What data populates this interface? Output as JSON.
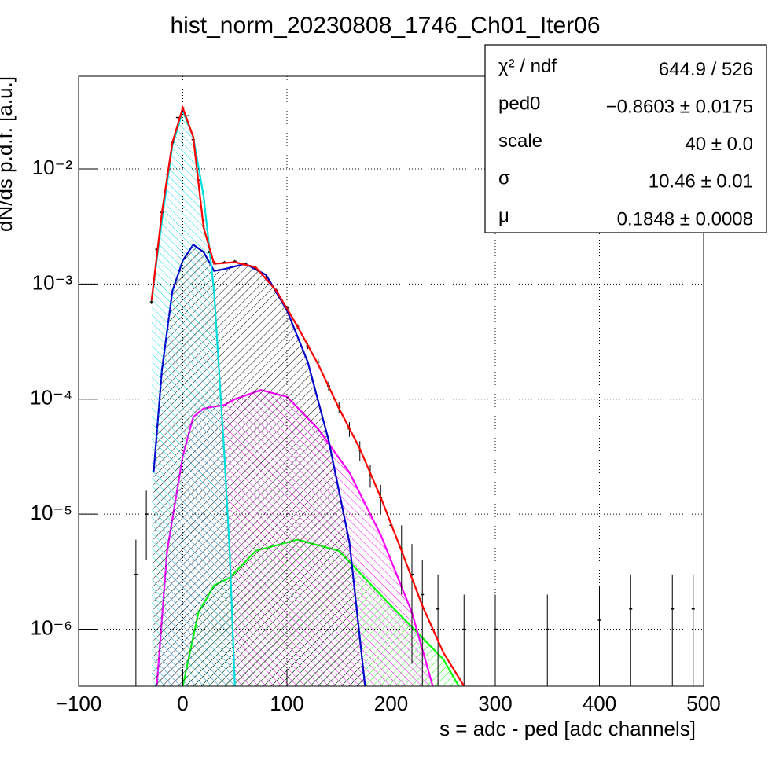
{
  "chart_data": {
    "type": "line",
    "title": "hist_norm_20230808_1746_Ch01_Iter06",
    "x_label": "s = adc - ped [adc channels]",
    "y_label": "dN/ds p.d.f. [a.u.]",
    "xlim": [
      -100,
      500
    ],
    "xticks": [
      {
        "value": -100,
        "label": "−100"
      },
      0,
      100,
      200,
      300,
      400,
      500
    ],
    "ylim": [
      3.2e-07,
      0.064
    ],
    "log_y": true,
    "yticks": [
      {
        "value": 1e-06,
        "label": "10⁻⁶"
      },
      {
        "value": 1e-05,
        "label": "10⁻⁵"
      },
      {
        "value": 0.0001,
        "label": "10⁻⁴"
      },
      {
        "value": 0.001,
        "label": "10⁻³"
      },
      {
        "value": 0.01,
        "label": "10⁻²"
      }
    ],
    "grid": true,
    "stats": [
      {
        "label": "χ² / ndf",
        "value": "644.9 / 526"
      },
      {
        "label": "ped0",
        "value": "−0.8603 ± 0.0175"
      },
      {
        "label": "scale",
        "value": "40 ± 0.0"
      },
      {
        "label": "σ",
        "value": "10.46 ± 0.01"
      },
      {
        "label": "μ",
        "value": "0.1848 ± 0.0008"
      }
    ],
    "series": [
      {
        "type": "curve",
        "color": "#00ff00",
        "hatch": "#00ff00",
        "x": [
          0,
          15,
          30,
          45,
          70,
          110,
          150,
          200,
          250,
          265
        ],
        "values": [
          3.2e-07,
          1.4e-06,
          2.4e-06,
          2.8e-06,
          4.8e-06,
          6e-06,
          4.8e-06,
          1.6e-06,
          5.5e-07,
          3.2e-07
        ]
      },
      {
        "type": "curve",
        "color": "#ff00ff",
        "hatch": "#ff00ff",
        "x": [
          -25,
          -15,
          0,
          10,
          20,
          40,
          50,
          75,
          100,
          130,
          160,
          190,
          220,
          240
        ],
        "values": [
          3.2e-07,
          4.8e-06,
          3.2e-05,
          7e-05,
          8.3e-05,
          8.9e-05,
          0.0001,
          0.00012,
          0.000105,
          5.5e-05,
          2.3e-05,
          6.6e-06,
          1.4e-06,
          3.2e-07
        ]
      },
      {
        "type": "curve",
        "color": "#0000cc",
        "hatch": "#000000",
        "x": [
          -28,
          -20,
          -10,
          0,
          10,
          20,
          30,
          40,
          60,
          80,
          100,
          120,
          140,
          160,
          175
        ],
        "values": [
          2.3e-05,
          0.00018,
          0.00087,
          0.0016,
          0.0022,
          0.0019,
          0.0013,
          0.00135,
          0.0015,
          0.0012,
          0.00059,
          0.00021,
          4.4e-05,
          5.7e-06,
          3.2e-07
        ]
      },
      {
        "type": "curve",
        "color": "#00dddd",
        "hatch": "#00dddd",
        "x": [
          -30,
          -20,
          -10,
          0,
          10,
          20,
          30,
          40,
          45,
          50
        ],
        "values": [
          0.00072,
          0.0036,
          0.016,
          0.032,
          0.019,
          0.0058,
          0.00087,
          3.2e-05,
          4.8e-06,
          3.2e-07
        ]
      },
      {
        "type": "errorbar",
        "color": "#000000",
        "x": [
          -45,
          -35,
          -30,
          -25,
          -20,
          -15,
          -10,
          -5,
          0,
          5,
          10,
          15,
          20,
          25,
          30,
          40,
          50,
          60,
          70,
          80,
          90,
          100,
          110,
          120,
          130,
          140,
          150,
          160,
          170,
          180,
          190,
          200,
          210,
          220,
          230,
          245,
          270,
          300,
          350,
          400,
          430,
          470,
          490
        ],
        "values": [
          3e-06,
          1e-05,
          0.0007,
          0.002,
          0.0042,
          0.009,
          0.017,
          0.028,
          0.034,
          0.029,
          0.018,
          0.008,
          0.0032,
          0.0019,
          0.00155,
          0.00155,
          0.00158,
          0.0015,
          0.00138,
          0.00115,
          0.00088,
          0.00062,
          0.00043,
          0.00029,
          0.00021,
          0.00013,
          8.5e-05,
          5.5e-05,
          3.6e-05,
          2.2e-05,
          1.4e-05,
          8e-06,
          5e-06,
          3e-06,
          2e-06,
          1.5e-06,
          1e-06,
          1e-06,
          1e-06,
          1.2e-06,
          1.5e-06,
          1.5e-06,
          1.5e-06
        ],
        "errors": [
          3e-06,
          6e-06,
          3e-05,
          5e-05,
          7e-05,
          0.0001,
          0.00013,
          0.00016,
          0.00018,
          0.00016,
          0.00013,
          9e-05,
          6e-05,
          4.5e-05,
          4e-05,
          4e-05,
          4e-05,
          4e-05,
          4e-05,
          3.5e-05,
          3e-05,
          2.5e-05,
          2e-05,
          1.7e-05,
          1.4e-05,
          1.2e-05,
          1e-05,
          8e-06,
          7e-06,
          5e-06,
          4e-06,
          3.5e-06,
          3e-06,
          2.5e-06,
          2e-06,
          1.5e-06,
          1e-06,
          1e-06,
          1e-06,
          1.2e-06,
          1.5e-06,
          1.5e-06,
          1.5e-06
        ]
      },
      {
        "type": "curve",
        "color": "#ff0000",
        "x": [
          -30,
          -20,
          -10,
          0,
          10,
          20,
          30,
          50,
          70,
          90,
          110,
          130,
          150,
          170,
          190,
          210,
          230,
          250,
          270
        ],
        "values": [
          0.00072,
          0.0042,
          0.017,
          0.034,
          0.019,
          0.0031,
          0.0015,
          0.00155,
          0.0014,
          0.00087,
          0.00043,
          0.0002,
          8.3e-05,
          3.7e-05,
          1.4e-05,
          4.8e-06,
          1.6e-06,
          6.3e-07,
          3.2e-07
        ]
      }
    ]
  }
}
